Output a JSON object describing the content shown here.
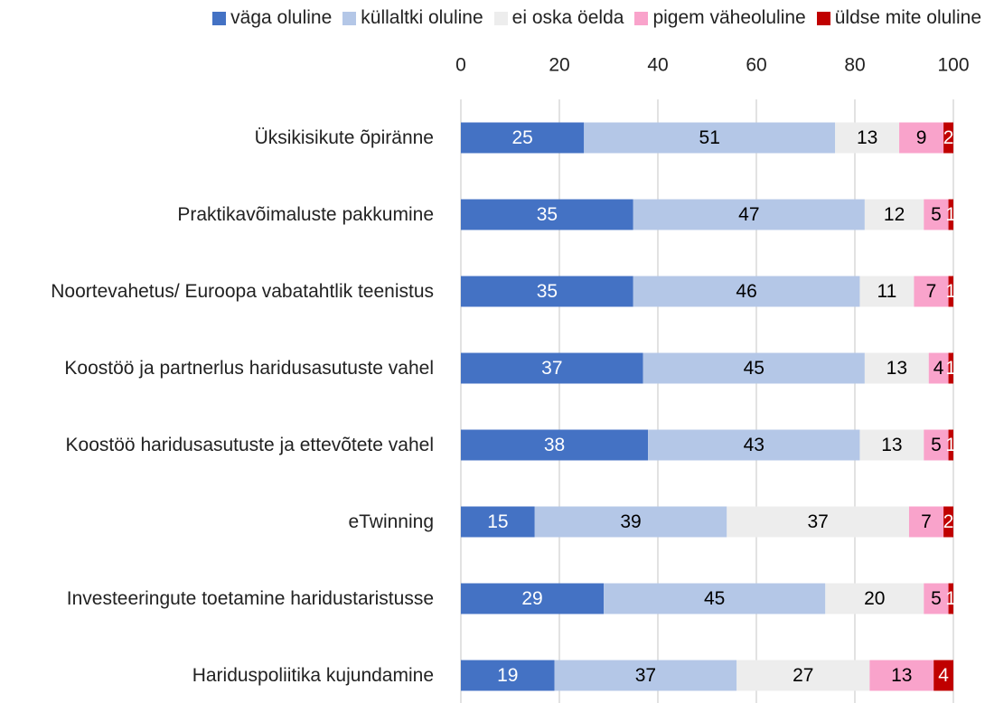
{
  "chart_data": {
    "type": "stacked_bar_horizontal",
    "categories": [
      "Üksikisikute õpiränne",
      "Praktikavõimaluste pakkumine",
      "Noortevahetus/ Euroopa vabatahtlik teenistus",
      "Koostöö ja partnerlus haridusasutuste vahel",
      "Koostöö haridusasutuste ja ettevõtete vahel",
      "eTwinning",
      "Investeeringute toetamine haridustaristusse",
      "Hariduspoliitika kujundamine"
    ],
    "series": [
      {
        "name": "väga oluline",
        "color": "#4472c4",
        "label_color": "#ffffff",
        "values": [
          25,
          35,
          35,
          37,
          38,
          15,
          29,
          19
        ]
      },
      {
        "name": "küllaltki oluline",
        "color": "#b4c7e7",
        "label_color": "#000000",
        "values": [
          51,
          47,
          46,
          45,
          43,
          39,
          45,
          37
        ]
      },
      {
        "name": "ei oska öelda",
        "color": "#ededed",
        "label_color": "#000000",
        "values": [
          13,
          12,
          11,
          13,
          13,
          37,
          20,
          27
        ]
      },
      {
        "name": "pigem väheoluline",
        "color": "#f9a3cb",
        "label_color": "#000000",
        "values": [
          9,
          5,
          7,
          4,
          5,
          7,
          5,
          13
        ]
      },
      {
        "name": "üldse mite oluline",
        "color": "#c00000",
        "label_color": "#ffffff",
        "values": [
          2,
          1,
          1,
          1,
          1,
          2,
          1,
          4
        ]
      }
    ],
    "xlim": [
      0,
      100
    ],
    "xticks": [
      0,
      20,
      40,
      60,
      80,
      100
    ],
    "grid": true,
    "legend": "top"
  }
}
